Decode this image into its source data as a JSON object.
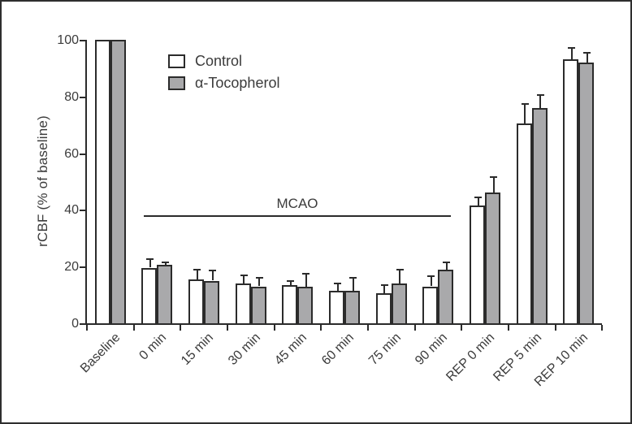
{
  "figure": {
    "border_color": "#2e2e2e",
    "background": "#ffffff",
    "ink_color": "#2b2b2b",
    "text_color": "#3b3b3b"
  },
  "annotation": {
    "label": "MCAO",
    "from_category": "0 min",
    "to_category": "90 min",
    "y_value": 38
  },
  "chart_data": {
    "type": "bar",
    "title": "",
    "xlabel": "",
    "ylabel": "rCBF (% of baseline)",
    "ylim": [
      0,
      100
    ],
    "yticks": [
      0,
      20,
      40,
      60,
      80,
      100
    ],
    "grid": false,
    "legend_position": "upper-left-inside",
    "error_bars": "upper-only",
    "categories": [
      "Baseline",
      "0 min",
      "15 min",
      "30 min",
      "45 min",
      "60 min",
      "75 min",
      "90 min",
      "REP 0 min",
      "REP 5 min",
      "REP 10 min"
    ],
    "series": [
      {
        "name": "Control",
        "fill": "#ffffff",
        "values": [
          100,
          19.5,
          15.5,
          14,
          13.5,
          11.5,
          10.5,
          13,
          41.5,
          70.5,
          93
        ],
        "errors": [
          0,
          3,
          3.5,
          3,
          1.5,
          2.5,
          3,
          3.5,
          3,
          7,
          4
        ]
      },
      {
        "name": "α-Tocopherol",
        "fill": "#a9a9ab",
        "values": [
          100,
          20.5,
          15,
          13,
          13,
          11.5,
          14,
          19,
          46,
          76,
          92
        ],
        "errors": [
          0,
          1,
          3.5,
          3,
          4.5,
          4.5,
          5,
          2.5,
          5.5,
          4.5,
          3.5
        ]
      }
    ]
  }
}
